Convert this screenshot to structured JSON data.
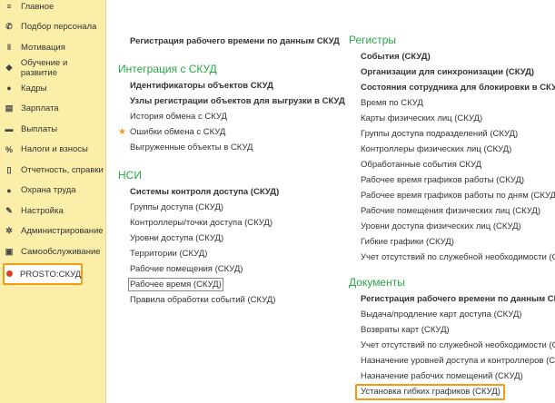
{
  "sidebar": {
    "items": [
      {
        "label": "Главное",
        "icon": "menu-icon"
      },
      {
        "label": "Подбор персонала",
        "icon": "phone-icon"
      },
      {
        "label": "Мотивация",
        "icon": "people-icon"
      },
      {
        "label": "Обучение и развитие",
        "icon": "graduation-icon"
      },
      {
        "label": "Кадры",
        "icon": "users-icon"
      },
      {
        "label": "Зарплата",
        "icon": "calculator-icon"
      },
      {
        "label": "Выплаты",
        "icon": "card-icon"
      },
      {
        "label": "Налоги и взносы",
        "icon": "percent-icon"
      },
      {
        "label": "Отчетность, справки",
        "icon": "documents-icon"
      },
      {
        "label": "Охрана труда",
        "icon": "helmet-icon"
      },
      {
        "label": "Настройка",
        "icon": "wrench-icon"
      },
      {
        "label": "Администрирование",
        "icon": "gear-icon"
      },
      {
        "label": "Самообслуживание",
        "icon": "id-card-icon"
      },
      {
        "label": "PROSTO:СКУД",
        "icon": "prosto-logo-icon",
        "active": true
      }
    ]
  },
  "left": {
    "top_link": "Регистрация рабочего времени по данным СКУД",
    "integration": {
      "title": "Интеграция с СКУД",
      "items": [
        "Идентификаторы объектов СКУД",
        "Узлы регистрации объектов для выгрузки в СКУД",
        "История обмена с СКУД",
        "Ошибки обмена с СКУД",
        "Выгруженные объекты в СКУД"
      ]
    },
    "nsi": {
      "title": "НСИ",
      "items": [
        "Системы контроля доступа (СКУД)",
        "Группы доступа (СКУД)",
        "Контроллеры/точки доступа (СКУД)",
        "Уровни доступа (СКУД)",
        "Территории (СКУД)",
        "Рабочие помещения (СКУД)",
        "Рабочее время (СКУД)",
        "Правила обработки событий (СКУД)"
      ]
    }
  },
  "right": {
    "registers": {
      "title": "Регистры",
      "items": [
        "События (СКУД)",
        "Организации для синхронизации (СКУД)",
        "Состояния сотрудника для блокировки в СКУД",
        "Время по СКУД",
        "Карты физических лиц (СКУД)",
        "Группы доступа подразделений (СКУД)",
        "Контроллеры физических лиц (СКУД)",
        "Обработанные события СКУД",
        "Рабочее время графиков работы (СКУД)",
        "Рабочее время графиков работы по дням (СКУД)",
        "Рабочие помещения физических лиц (СКУД)",
        "Уровни доступа физических лиц (СКУД)",
        "Гибкие графики (СКУД)",
        "Учет отсутствий по служебной необходимости (СКУД)"
      ]
    },
    "documents": {
      "title": "Документы",
      "items": [
        "Регистрация рабочего времени по данным СКУД",
        "Выдача/продление карт доступа (СКУД)",
        "Возвраты карт (СКУД)",
        "Учет отсутствий по служебной необходимости (СКУД)",
        "Назначение уровней доступа и контроллеров (СКУД)",
        "Назначение рабочих помещений (СКУД)",
        "Установка гибких графиков (СКУД)"
      ]
    }
  },
  "colors": {
    "sidebar": "#fbeea8",
    "section_title": "#28a745",
    "highlight": "#f39c12"
  }
}
